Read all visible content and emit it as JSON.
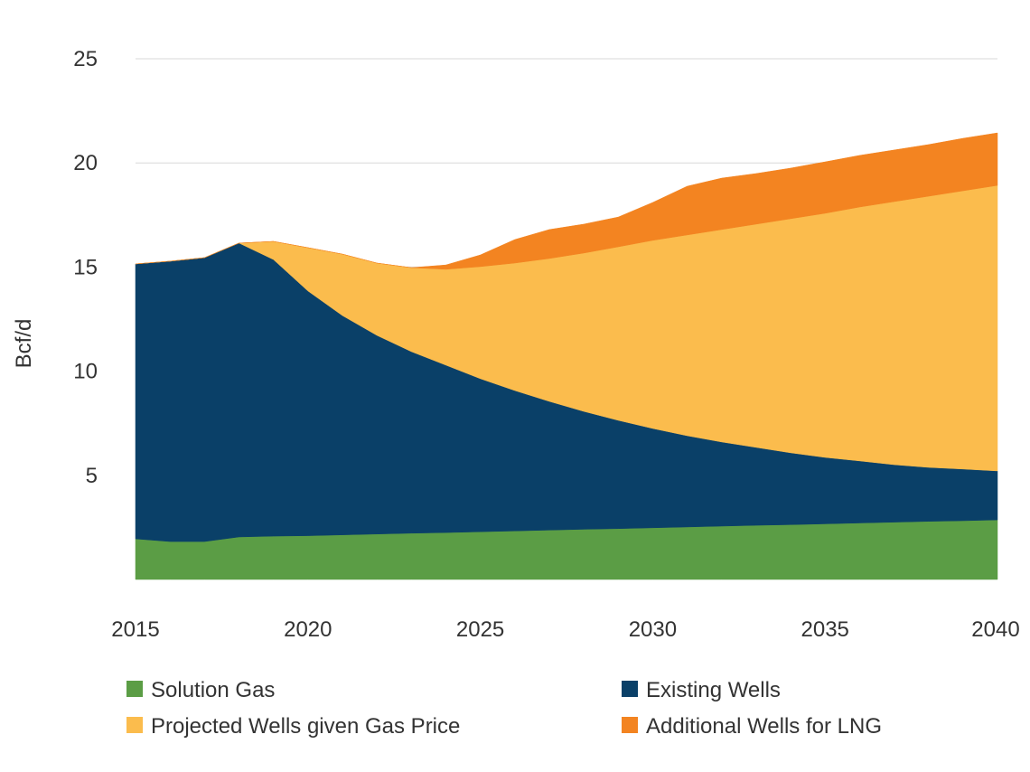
{
  "chart_data": {
    "type": "area",
    "stacked": true,
    "title": "",
    "xlabel": "",
    "ylabel": "Bcf/d",
    "ylim": [
      0,
      25
    ],
    "xlim": [
      2015,
      2040
    ],
    "yticks": [
      5,
      10,
      15,
      20,
      25
    ],
    "xticks": [
      2015,
      2020,
      2025,
      2030,
      2035,
      2040
    ],
    "grid": true,
    "legend": "bottom",
    "x": [
      2015,
      2016,
      2017,
      2018,
      2019,
      2020,
      2021,
      2022,
      2023,
      2024,
      2025,
      2026,
      2027,
      2028,
      2029,
      2030,
      2031,
      2032,
      2033,
      2034,
      2035,
      2036,
      2037,
      2038,
      2039,
      2040
    ],
    "series": [
      {
        "name": "Solution Gas",
        "color": "#5b9d45",
        "values": [
          1.95,
          1.82,
          1.82,
          2.04,
          2.08,
          2.1,
          2.14,
          2.18,
          2.22,
          2.25,
          2.29,
          2.33,
          2.37,
          2.41,
          2.44,
          2.48,
          2.52,
          2.56,
          2.6,
          2.63,
          2.67,
          2.71,
          2.75,
          2.79,
          2.82,
          2.86
        ]
      },
      {
        "name": "Existing Wells",
        "color": "#0a4068",
        "values": [
          13.2,
          13.46,
          13.63,
          14.11,
          13.28,
          11.75,
          10.53,
          9.54,
          8.72,
          8.04,
          7.35,
          6.74,
          6.18,
          5.66,
          5.2,
          4.77,
          4.38,
          4.04,
          3.74,
          3.45,
          3.19,
          2.98,
          2.76,
          2.59,
          2.48,
          2.35
        ]
      },
      {
        "name": "Projected Wells given Gas Price",
        "color": "#fbbc4d",
        "values": [
          0,
          0,
          0,
          0,
          0.87,
          2.08,
          2.95,
          3.47,
          4.03,
          4.6,
          5.38,
          6.12,
          6.86,
          7.6,
          8.33,
          9.03,
          9.64,
          10.2,
          10.72,
          11.24,
          11.72,
          12.19,
          12.63,
          13.02,
          13.36,
          13.71
        ]
      },
      {
        "name": "Additional Wells for LNG",
        "color": "#f38421",
        "values": [
          0,
          0,
          0,
          0,
          0,
          0,
          0,
          0,
          0,
          0.21,
          0.56,
          1.13,
          1.39,
          1.39,
          1.43,
          1.82,
          2.34,
          2.47,
          2.43,
          2.43,
          2.47,
          2.48,
          2.48,
          2.48,
          2.52,
          2.52
        ]
      }
    ]
  }
}
